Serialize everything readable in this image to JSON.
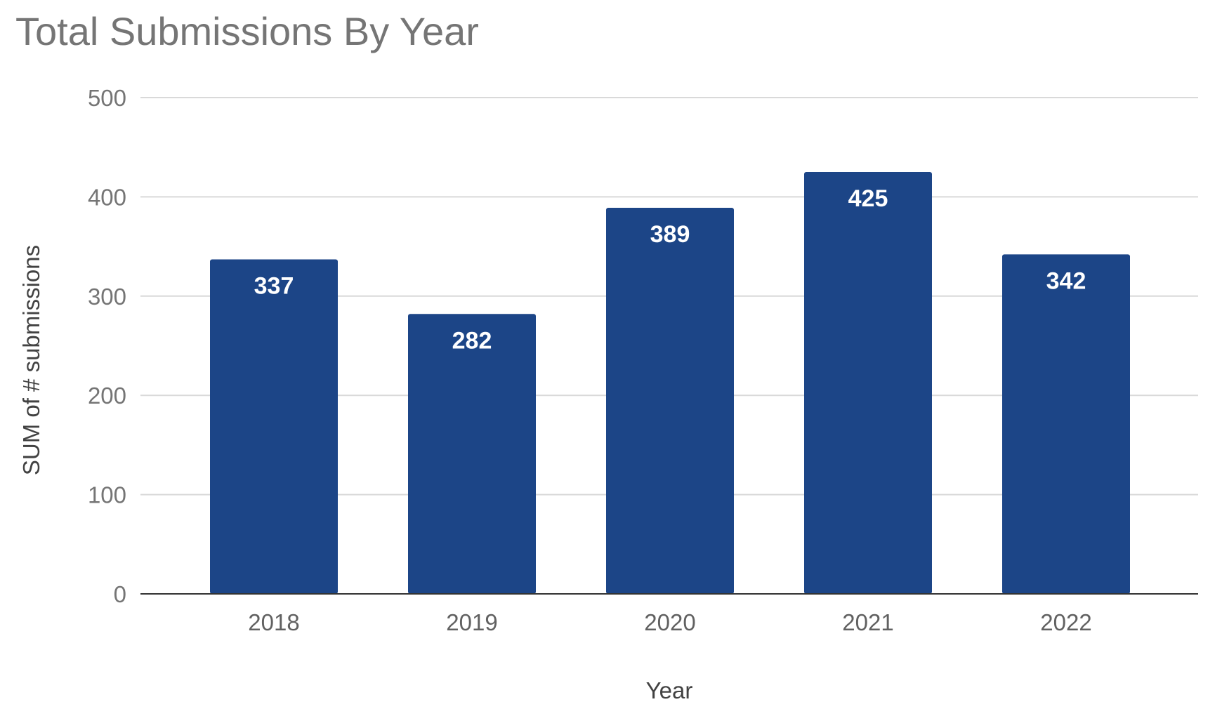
{
  "chart_data": {
    "type": "bar",
    "title": "Total Submissions By Year",
    "xlabel": "Year",
    "ylabel": "SUM of # submissions",
    "categories": [
      "2018",
      "2019",
      "2020",
      "2021",
      "2022"
    ],
    "values": [
      337,
      282,
      389,
      425,
      342
    ],
    "data_labels": [
      "337",
      "282",
      "389",
      "425",
      "342"
    ],
    "yticks": [
      0,
      100,
      200,
      300,
      400,
      500
    ],
    "ylim": [
      0,
      500
    ],
    "grid": true,
    "legend": "none",
    "bar_color": "#1c4587"
  }
}
